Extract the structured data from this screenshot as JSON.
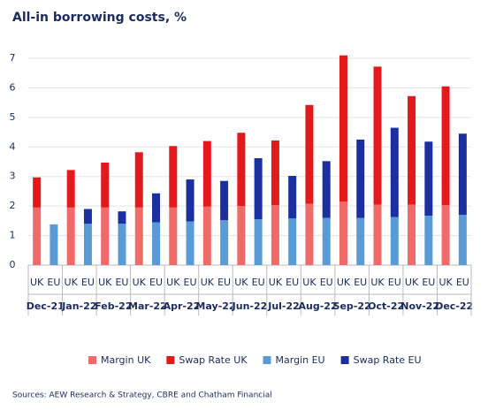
{
  "chart_data": {
    "type": "bar",
    "stacked": true,
    "title": "All-in borrowing costs, %",
    "source": "Sources: AEW Research & Strategy, CBRE and Chatham Financial",
    "groups": [
      "Dec-21",
      "Jan-22",
      "Feb-22",
      "Mar-22",
      "Apr-22",
      "May-22",
      "Jun-22",
      "Jul-22",
      "Aug-22",
      "Sep-22",
      "Oct-22",
      "Nov-22",
      "Dec-22"
    ],
    "categories": [
      "UK",
      "EU",
      "UK",
      "EU",
      "UK",
      "EU",
      "UK",
      "EU",
      "UK",
      "EU",
      "UK",
      "EU",
      "UK",
      "EU",
      "UK",
      "EU",
      "UK",
      "EU",
      "UK",
      "EU",
      "UK",
      "EU",
      "UK",
      "EU",
      "UK",
      "EU"
    ],
    "series": [
      {
        "name": "Margin UK",
        "color": "#f06a6a",
        "values": [
          1.95,
          null,
          1.95,
          null,
          1.95,
          null,
          1.95,
          null,
          1.95,
          null,
          1.98,
          null,
          2.0,
          null,
          2.03,
          null,
          2.08,
          null,
          2.15,
          null,
          2.05,
          null,
          2.05,
          null,
          2.03,
          null
        ]
      },
      {
        "name": "Swap Rate UK",
        "color": "#e3191b",
        "values": [
          1.02,
          null,
          1.27,
          null,
          1.52,
          null,
          1.87,
          null,
          2.08,
          null,
          2.22,
          null,
          2.48,
          null,
          2.19,
          null,
          3.34,
          null,
          4.95,
          null,
          4.67,
          null,
          3.67,
          null,
          4.02,
          null
        ]
      },
      {
        "name": "Margin EU",
        "color": "#5b9bd5",
        "values": [
          null,
          1.38,
          null,
          1.4,
          null,
          1.4,
          null,
          1.45,
          null,
          1.48,
          null,
          1.52,
          null,
          1.55,
          null,
          1.58,
          null,
          1.6,
          null,
          1.6,
          null,
          1.63,
          null,
          1.67,
          null,
          1.7
        ]
      },
      {
        "name": "Swap Rate EU",
        "color": "#1c2fa0",
        "values": [
          null,
          null,
          null,
          0.5,
          null,
          0.42,
          null,
          0.98,
          null,
          1.42,
          null,
          1.33,
          null,
          2.07,
          null,
          1.44,
          null,
          1.92,
          null,
          2.65,
          null,
          3.02,
          null,
          2.51,
          null,
          2.75
        ]
      }
    ],
    "ylim": [
      0,
      7
    ],
    "yticks": [
      0,
      1,
      2,
      3,
      4,
      5,
      6,
      7
    ],
    "grid": true
  }
}
